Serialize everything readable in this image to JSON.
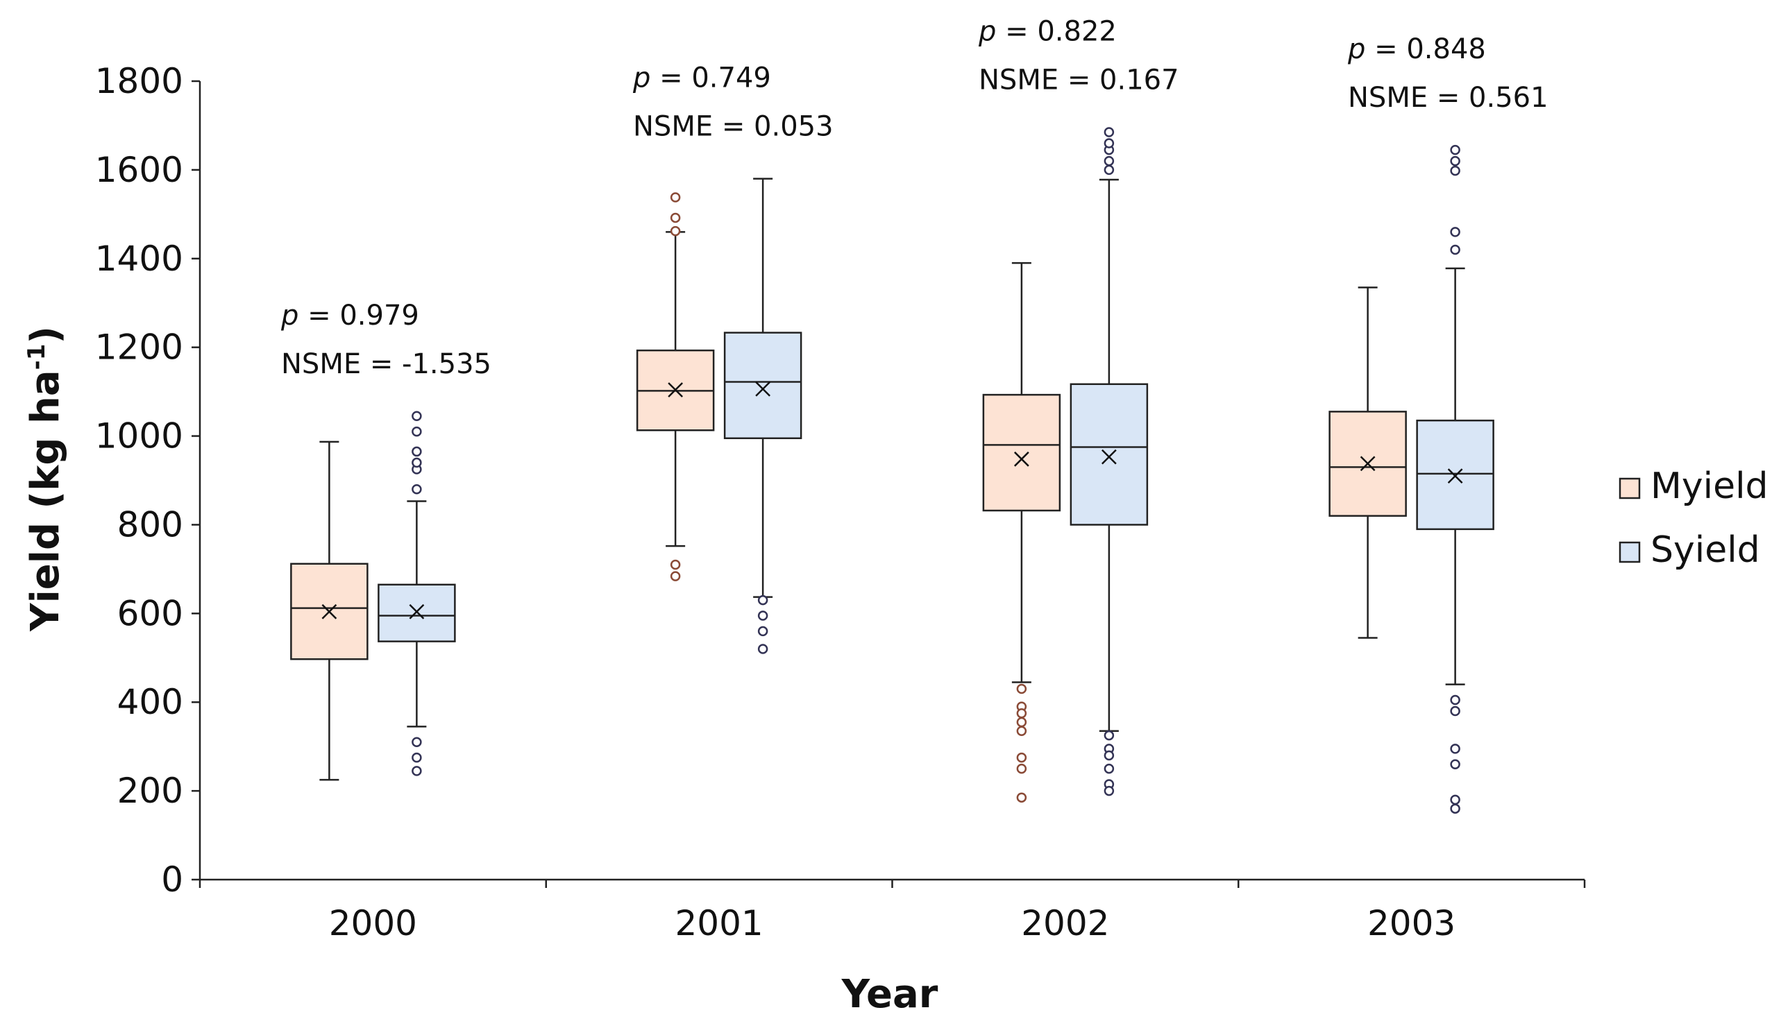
{
  "chart_data": {
    "type": "box",
    "title": "",
    "xlabel": "Year",
    "ylabel_main": "Yield (kg ha",
    "ylabel_sup": "-1",
    "ylabel_end": ")",
    "ylim": [
      0,
      1800
    ],
    "yticks": [
      0,
      200,
      400,
      600,
      800,
      1000,
      1200,
      1400,
      1600,
      1800
    ],
    "categories": [
      "2000",
      "2001",
      "2002",
      "2003"
    ],
    "legend_position": "right",
    "series": [
      {
        "name": "Myield",
        "fill": "#fde3d4",
        "outlier_color": "#8a4a36",
        "boxes": [
          {
            "whisker_low": 225,
            "q1": 497,
            "median": 612,
            "q3": 712,
            "whisker_high": 987,
            "mean": 604,
            "outliers": []
          },
          {
            "whisker_low": 752,
            "q1": 1013,
            "median": 1102,
            "q3": 1193,
            "whisker_high": 1460,
            "mean": 1104,
            "outliers": [
              710,
              684,
              1538,
              1492,
              1462
            ]
          },
          {
            "whisker_low": 445,
            "q1": 832,
            "median": 980,
            "q3": 1093,
            "whisker_high": 1390,
            "mean": 948,
            "outliers": [
              430,
              390,
              375,
              355,
              335,
              275,
              250,
              185
            ]
          },
          {
            "whisker_low": 545,
            "q1": 820,
            "median": 930,
            "q3": 1055,
            "whisker_high": 1335,
            "mean": 938,
            "outliers": []
          }
        ]
      },
      {
        "name": "Syield",
        "fill": "#d9e6f6",
        "outlier_color": "#333355",
        "boxes": [
          {
            "whisker_low": 345,
            "q1": 537,
            "median": 595,
            "q3": 665,
            "whisker_high": 853,
            "mean": 604,
            "outliers": [
              310,
              275,
              245,
              880,
              925,
              940,
              965,
              1010,
              1045
            ]
          },
          {
            "whisker_low": 637,
            "q1": 995,
            "median": 1122,
            "q3": 1233,
            "whisker_high": 1580,
            "mean": 1106,
            "outliers": [
              630,
              595,
              560,
              520
            ]
          },
          {
            "whisker_low": 335,
            "q1": 800,
            "median": 975,
            "q3": 1117,
            "whisker_high": 1578,
            "mean": 953,
            "outliers": [
              325,
              295,
              280,
              250,
              215,
              200,
              1600,
              1620,
              1645,
              1660,
              1685
            ]
          },
          {
            "whisker_low": 440,
            "q1": 790,
            "median": 915,
            "q3": 1035,
            "whisker_high": 1378,
            "mean": 910,
            "outliers": [
              405,
              380,
              295,
              260,
              180,
              160,
              1420,
              1460,
              1598,
              1620,
              1645
            ]
          }
        ]
      }
    ],
    "annotations": [
      {
        "year": "2000",
        "p_label": "p",
        "p_text": " = 0.979",
        "nsme_text": "NSME = -1.535"
      },
      {
        "year": "2001",
        "p_label": "p",
        "p_text": " = 0.749",
        "nsme_text": "NSME = 0.053"
      },
      {
        "year": "2002",
        "p_label": "p",
        "p_text": " = 0.822",
        "nsme_text": "NSME = 0.167"
      },
      {
        "year": "2003",
        "p_label": "p",
        "p_text": " = 0.848",
        "nsme_text": "NSME = 0.561"
      }
    ]
  }
}
